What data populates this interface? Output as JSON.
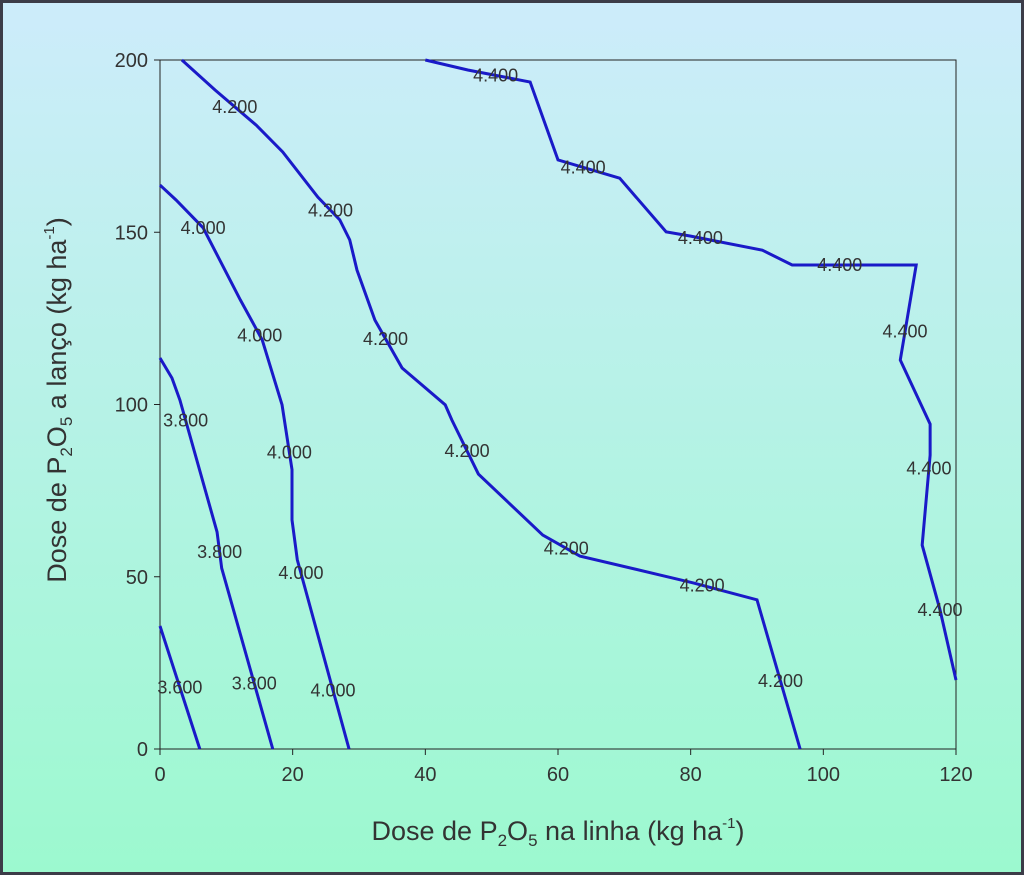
{
  "chart_data": {
    "type": "contour",
    "x_label": [
      "Dose de P",
      "2",
      "O",
      "5",
      " na linha (kg ha",
      "-1",
      ")"
    ],
    "y_label": [
      "Dose de P",
      "2",
      "O",
      "5",
      " a lanço (kg ha",
      "-1",
      ")"
    ],
    "xlim": [
      0,
      120
    ],
    "ylim": [
      0,
      200
    ],
    "xticks": [
      0,
      20,
      40,
      60,
      80,
      100,
      120
    ],
    "yticks": [
      0,
      50,
      100,
      150,
      200
    ],
    "color": "#1a1ac8",
    "series": [
      {
        "level": 3.6,
        "labels": [
          "3.600"
        ],
        "x": [
          0,
          6.0
        ],
        "y": [
          35.7,
          0
        ]
      },
      {
        "level": 3.8,
        "labels": [
          "3.800",
          "3.800",
          "3.800"
        ],
        "x": [
          0,
          1.8,
          3.0,
          8.6,
          9.3,
          17.0
        ],
        "y": [
          113.5,
          107.7,
          101.3,
          63.0,
          52.5,
          0
        ]
      },
      {
        "level": 4.0,
        "labels": [
          "4.000",
          "4.000",
          "4.000",
          "4.000",
          "4.000"
        ],
        "x": [
          0,
          2.4,
          6.5,
          12.1,
          15.4,
          18.4,
          19.9,
          19.9,
          20.7,
          28.5
        ],
        "y": [
          163.7,
          159.4,
          151.3,
          130.4,
          118.8,
          99.9,
          81.1,
          66.5,
          54.9,
          0
        ]
      },
      {
        "level": 4.2,
        "labels": [
          "4.200",
          "4.200",
          "4.200",
          "4.200",
          "4.200",
          "4.200",
          "4.200"
        ],
        "x": [
          3.3,
          8.3,
          14.5,
          18.5,
          23.8,
          27.1,
          28.6,
          29.7,
          32.4,
          36.5,
          43.0,
          44.0,
          48.0,
          57.7,
          63.3,
          75.4,
          80.4,
          90.0,
          96.5
        ],
        "y": [
          200,
          191.3,
          181.1,
          173.3,
          160.2,
          153.6,
          147.8,
          139.0,
          124.5,
          110.6,
          99.9,
          95.5,
          79.8,
          62.1,
          56.0,
          50.5,
          48.2,
          43.3,
          0
        ]
      },
      {
        "level": 4.4,
        "labels": [
          "4.400",
          "4.400",
          "4.400",
          "4.400",
          "4.400",
          "4.400",
          "4.400"
        ],
        "x": [
          40.0,
          46.4,
          55.8,
          60.0,
          69.3,
          76.3,
          79.9,
          90.8,
          95.3,
          114.0,
          111.6,
          116.1,
          116.1,
          114.9,
          117.6,
          120.0
        ],
        "y": [
          200,
          197.1,
          193.6,
          171.0,
          165.7,
          150.1,
          148.9,
          144.8,
          140.5,
          140.5,
          112.9,
          94.3,
          85.3,
          59.2,
          40.3,
          20.0
        ]
      }
    ]
  }
}
